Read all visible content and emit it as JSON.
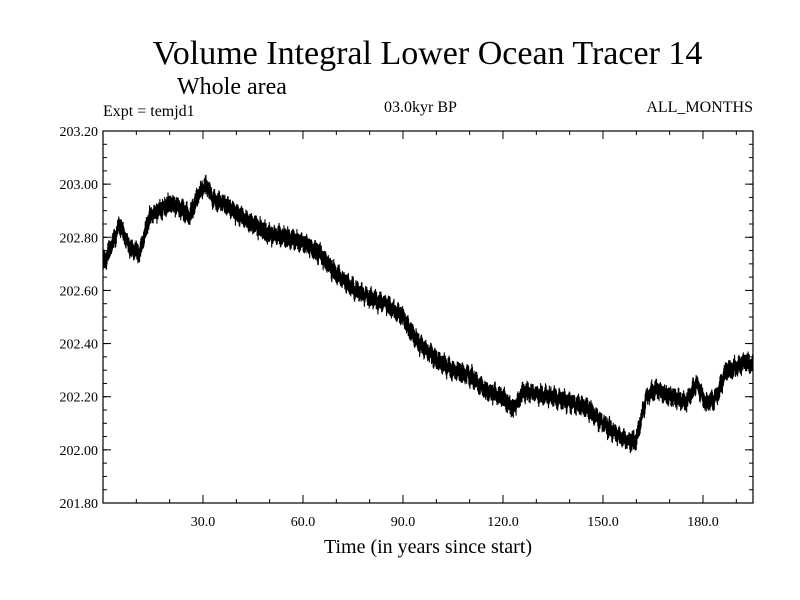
{
  "chart_data": {
    "type": "line",
    "title": "Volume Integral Lower Ocean Tracer 14",
    "subtitle": "Whole area",
    "experiment_label": "Expt = temjd1",
    "period_label": "03.0kyr BP",
    "months_label": "ALL_MONTHS",
    "xlabel": "Time (in years since start)",
    "ylabel": "",
    "xlim": [
      0,
      195
    ],
    "ylim": [
      201.8,
      203.2
    ],
    "xticks": [
      30,
      60,
      90,
      120,
      150,
      180
    ],
    "xtick_labels": [
      "30.0",
      "60.0",
      "90.0",
      "120.0",
      "150.0",
      "180.0"
    ],
    "yticks": [
      201.8,
      202.0,
      202.2,
      202.4,
      202.6,
      202.8,
      203.0,
      203.2
    ],
    "ytick_labels": [
      "201.80",
      "202.00",
      "202.20",
      "202.40",
      "202.60",
      "202.80",
      "203.00",
      "203.20"
    ],
    "grid": false,
    "noise_amplitude": 0.035,
    "series": [
      {
        "name": "Volume integral",
        "color": "#000000",
        "x": [
          0,
          3,
          5,
          8,
          11,
          14,
          17,
          20,
          23,
          26,
          29,
          31,
          33,
          36,
          40,
          45,
          50,
          55,
          60,
          65,
          70,
          75,
          80,
          85,
          90,
          92,
          95,
          100,
          105,
          110,
          115,
          120,
          123,
          126,
          130,
          135,
          140,
          145,
          150,
          155,
          158,
          160,
          163,
          166,
          170,
          175,
          178,
          181,
          184,
          187,
          190,
          193,
          195
        ],
        "y": [
          202.7,
          202.78,
          202.85,
          202.76,
          202.74,
          202.88,
          202.9,
          202.93,
          202.91,
          202.88,
          202.97,
          203.0,
          202.94,
          202.93,
          202.89,
          202.85,
          202.81,
          202.8,
          202.78,
          202.74,
          202.66,
          202.61,
          202.57,
          202.55,
          202.5,
          202.45,
          202.4,
          202.34,
          202.3,
          202.28,
          202.22,
          202.2,
          202.15,
          202.22,
          202.21,
          202.2,
          202.18,
          202.16,
          202.1,
          202.05,
          202.03,
          202.04,
          202.2,
          202.23,
          202.2,
          202.18,
          202.25,
          202.17,
          202.2,
          202.3,
          202.31,
          202.33,
          202.32
        ]
      }
    ]
  }
}
